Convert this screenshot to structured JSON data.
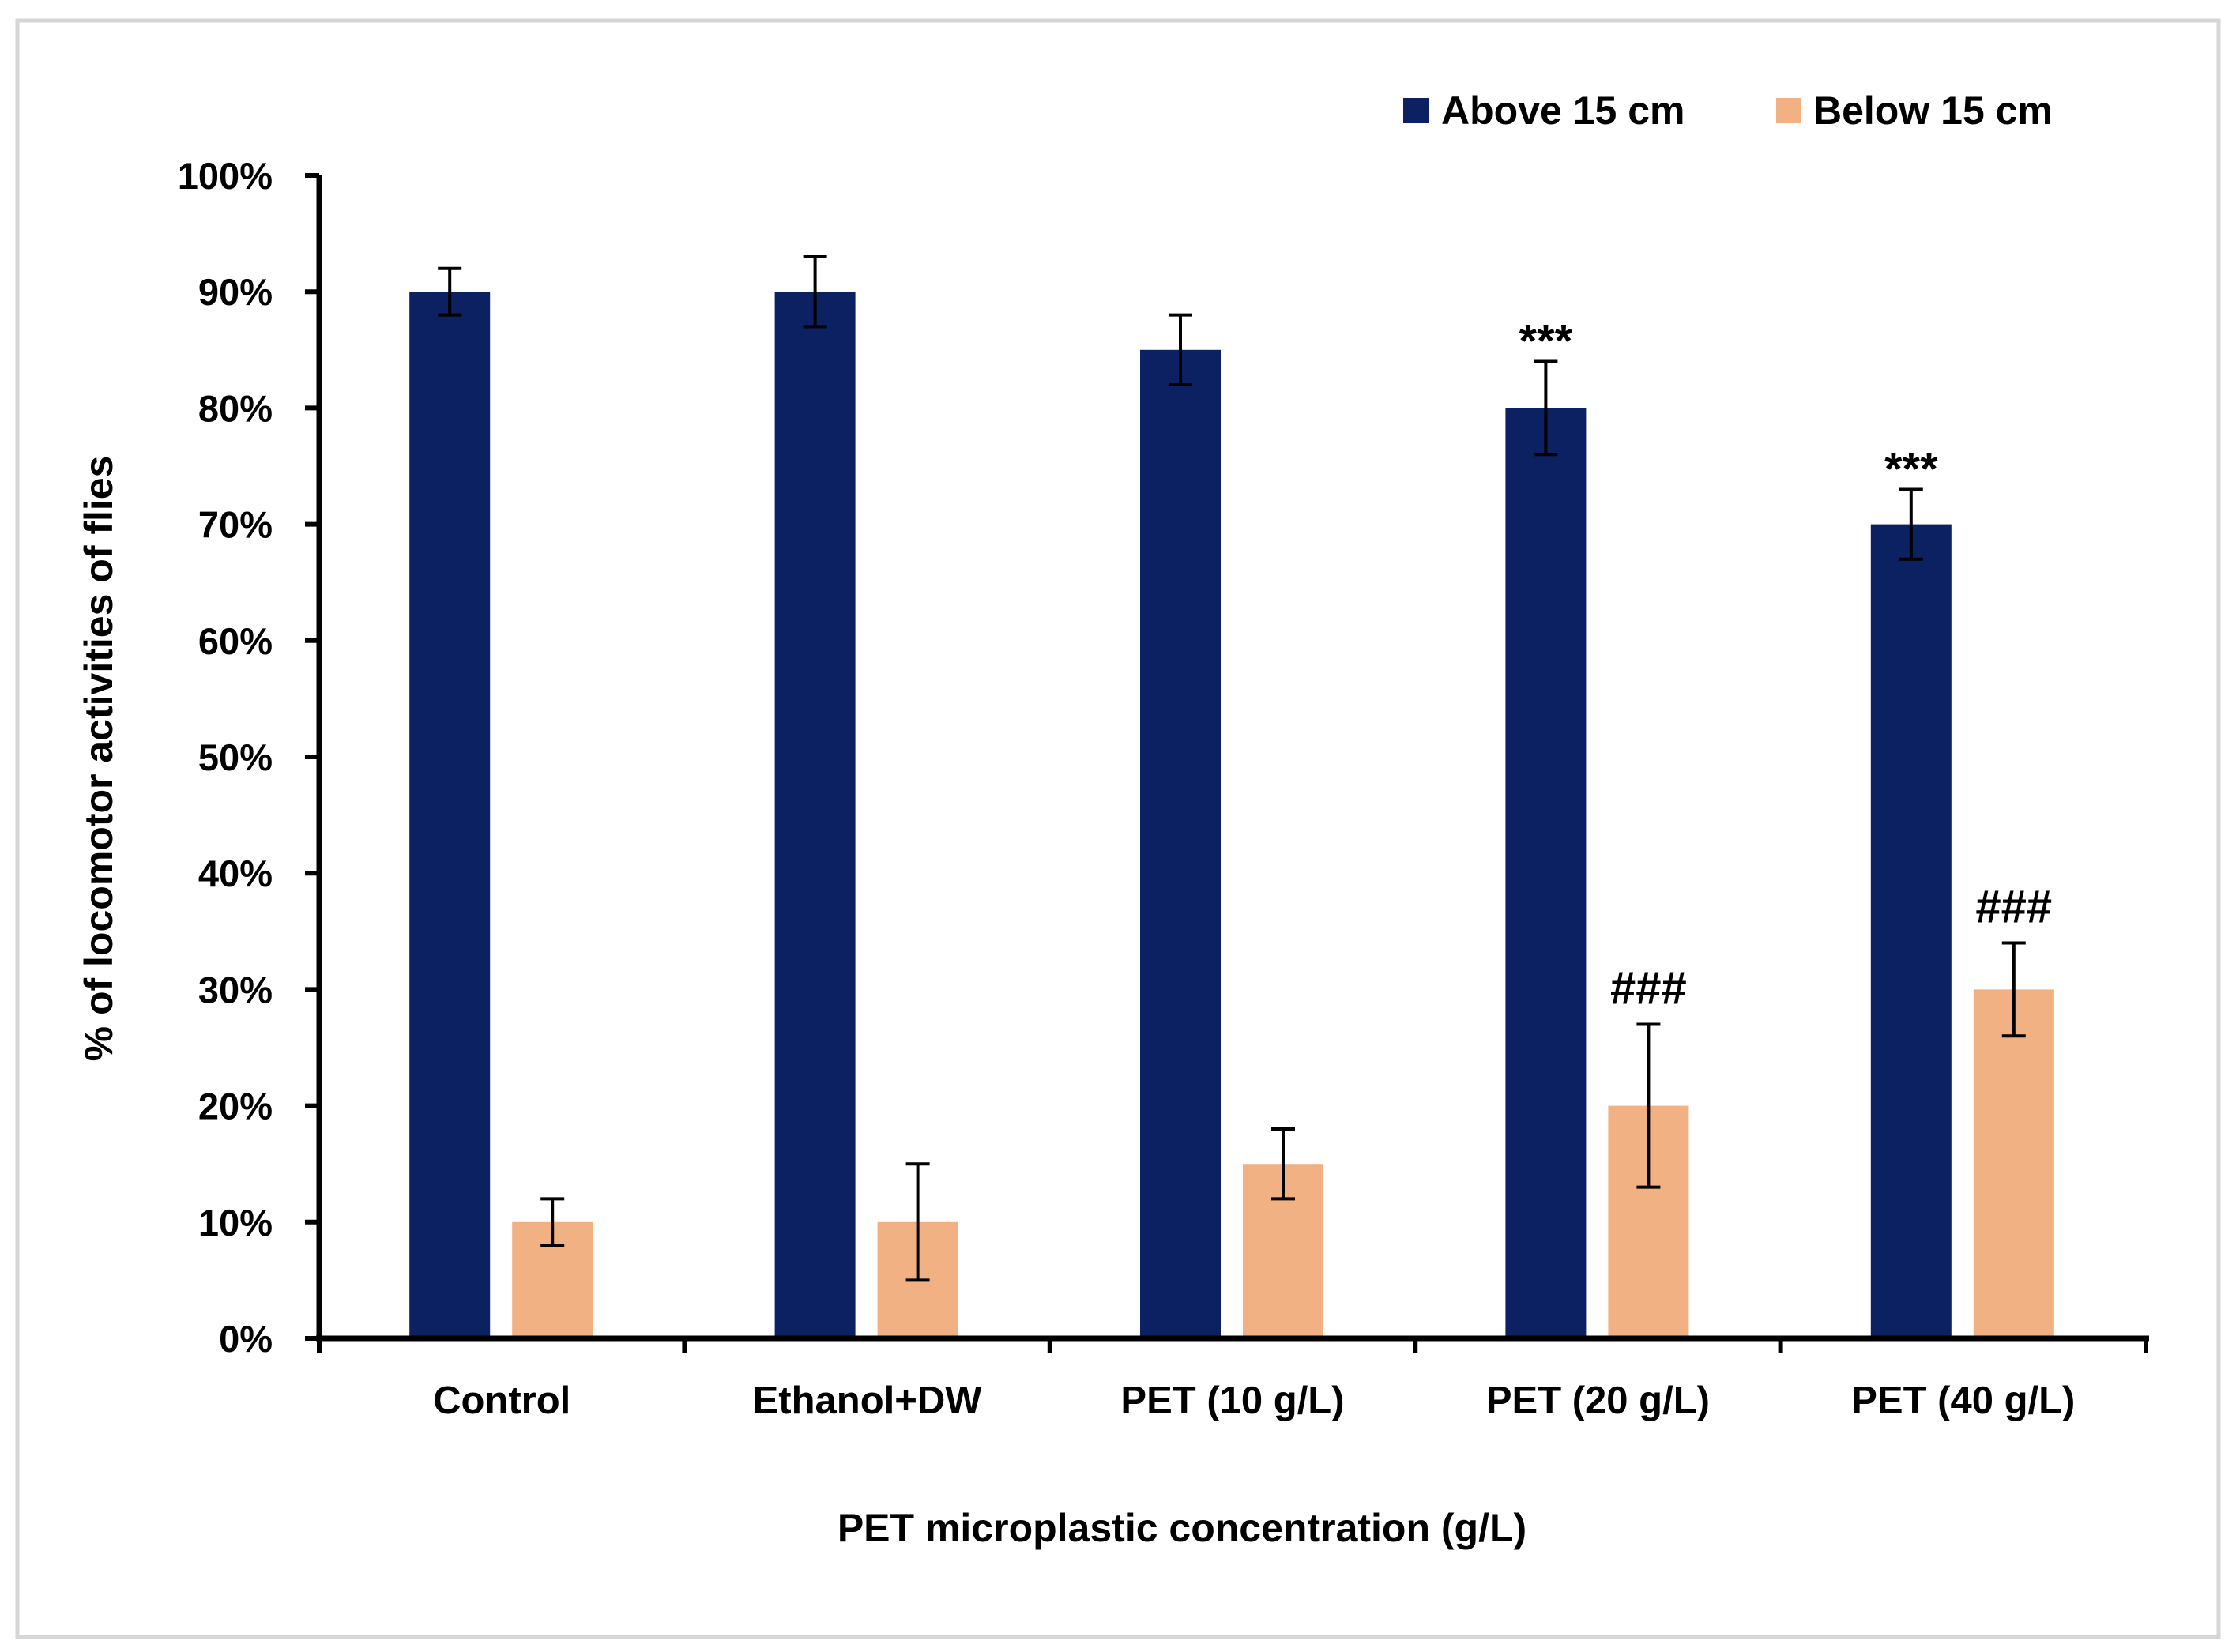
{
  "chart_data": {
    "type": "bar",
    "title": "",
    "xlabel": "PET microplastic concentration (g/L)",
    "ylabel": "% of locomotor activities of flies",
    "ylim": [
      0,
      100
    ],
    "yticks": [
      "0%",
      "10%",
      "20%",
      "30%",
      "40%",
      "50%",
      "60%",
      "70%",
      "80%",
      "90%",
      "100%"
    ],
    "ytick_values": [
      0,
      10,
      20,
      30,
      40,
      50,
      60,
      70,
      80,
      90,
      100
    ],
    "categories": [
      "Control",
      "Ethanol+DW",
      "PET (10 g/L)",
      "PET (20 g/L)",
      "PET (40 g/L)"
    ],
    "legend_position": "top-right",
    "grid": false,
    "series": [
      {
        "name": "Above 15 cm",
        "color": "#0b2161",
        "values": [
          90,
          90,
          85,
          80,
          70
        ],
        "errors": [
          2,
          3,
          3,
          4,
          3
        ],
        "annotations": [
          "",
          "",
          "",
          "***",
          "***"
        ]
      },
      {
        "name": "Below 15 cm",
        "color": "#f2b183",
        "values": [
          10,
          10,
          15,
          20,
          30
        ],
        "errors": [
          2,
          5,
          3,
          7,
          4
        ],
        "annotations": [
          "",
          "",
          "",
          "###",
          "###"
        ]
      }
    ]
  }
}
